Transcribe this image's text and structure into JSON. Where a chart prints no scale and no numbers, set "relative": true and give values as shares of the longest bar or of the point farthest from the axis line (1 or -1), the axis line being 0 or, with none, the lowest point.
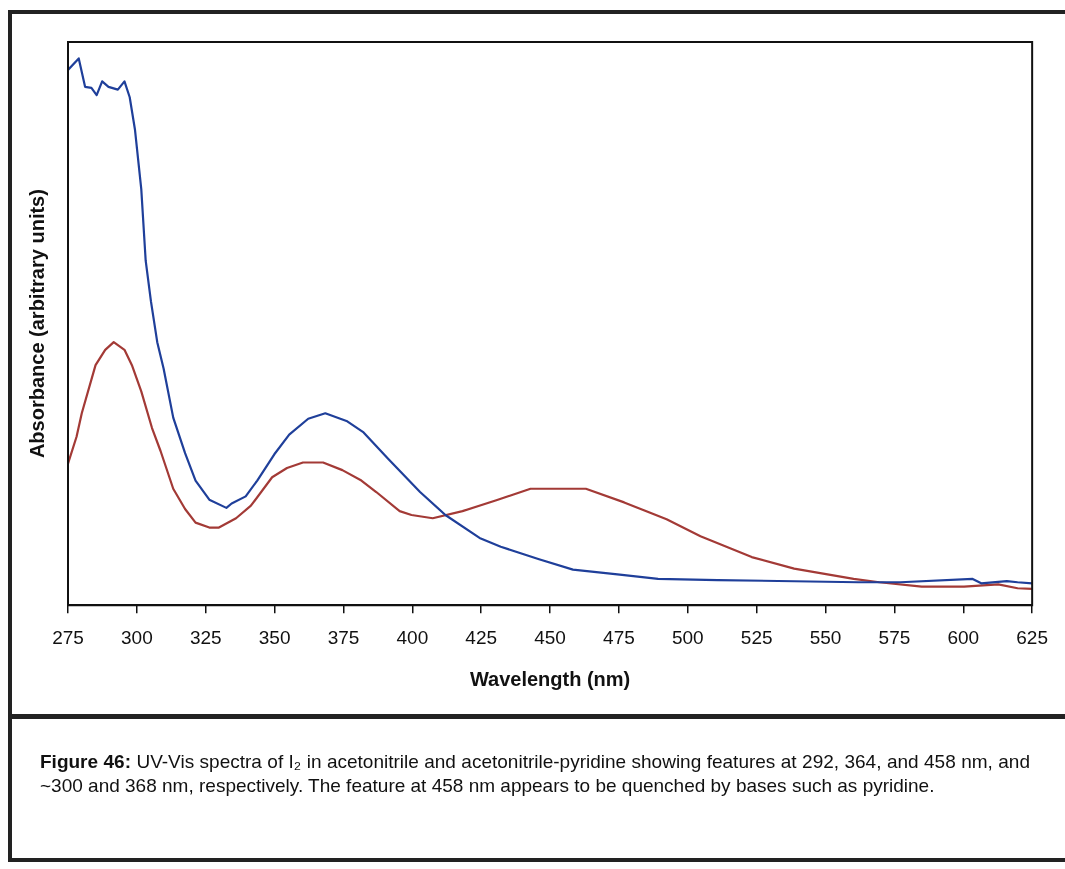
{
  "chart_data": {
    "type": "line",
    "relative": true,
    "xlabel": "Wavelength (nm)",
    "ylabel": "Absorbance (arbitrary units)",
    "xlim": [
      275,
      625
    ],
    "xticks": [
      275,
      300,
      325,
      350,
      375,
      400,
      425,
      450,
      475,
      500,
      525,
      550,
      575,
      600,
      625
    ],
    "tick_labels": "x",
    "grid": false,
    "legend": false,
    "marker": "none",
    "line_style": "solid",
    "annotations": [
      "Figure 46: UV-Vis spectra of I₂ in acetonitrile and acetonitrile-pyridine showing features at 292, 364, and 458 nm, and ~300 and 368 nm, respectively. The feature at 458 nm appears to be quenched by bases such as pyridine."
    ],
    "series": [
      {
        "color": "#1f3f9a",
        "x": [
          275,
          278.9,
          281.2,
          283.5,
          285.4,
          287.4,
          289.7,
          293.1,
          295.5,
          297.4,
          299.3,
          301.6,
          303.2,
          305.1,
          307.4,
          309.7,
          313.2,
          317.5,
          321.3,
          326.3,
          332.5,
          334.4,
          339.5,
          343.7,
          349.9,
          355.3,
          362.2,
          368.4,
          376.1,
          382.3,
          391.2,
          402.8,
          412.0,
          424.4,
          432.1,
          446.0,
          458.3,
          475.3,
          489.2,
          510.8,
          561.8,
          577.2,
          603.4,
          606.5,
          615.8,
          619.7,
          625
        ],
        "values": [
          0.979,
          1.0,
          0.948,
          0.946,
          0.933,
          0.958,
          0.948,
          0.943,
          0.958,
          0.929,
          0.87,
          0.761,
          0.63,
          0.556,
          0.481,
          0.433,
          0.343,
          0.278,
          0.228,
          0.193,
          0.178,
          0.186,
          0.199,
          0.228,
          0.276,
          0.312,
          0.341,
          0.351,
          0.337,
          0.316,
          0.268,
          0.207,
          0.165,
          0.123,
          0.107,
          0.084,
          0.065,
          0.056,
          0.048,
          0.046,
          0.042,
          0.042,
          0.048,
          0.04,
          0.044,
          0.042,
          0.04
        ]
      },
      {
        "color": "#a33a36",
        "x": [
          275,
          278.1,
          280.0,
          285.0,
          288.5,
          291.6,
          295.5,
          298.2,
          301.6,
          305.5,
          308.6,
          313.2,
          317.5,
          321.3,
          326.3,
          329.8,
          336.0,
          341.4,
          349.1,
          354.5,
          360.3,
          367.6,
          374.6,
          381.5,
          386.9,
          395.4,
          399.7,
          407.4,
          418.2,
          430.5,
          442.9,
          463.0,
          476.9,
          492.3,
          504.6,
          523.2,
          538.6,
          560.2,
          569.5,
          584.9,
          600.3,
          612.7,
          619.7,
          625
        ],
        "values": [
          0.259,
          0.308,
          0.351,
          0.439,
          0.467,
          0.481,
          0.467,
          0.439,
          0.391,
          0.324,
          0.282,
          0.213,
          0.176,
          0.151,
          0.142,
          0.142,
          0.159,
          0.182,
          0.234,
          0.251,
          0.261,
          0.261,
          0.247,
          0.228,
          0.207,
          0.172,
          0.165,
          0.159,
          0.172,
          0.192,
          0.213,
          0.213,
          0.188,
          0.157,
          0.126,
          0.088,
          0.067,
          0.048,
          0.042,
          0.034,
          0.034,
          0.038,
          0.031,
          0.03
        ]
      }
    ]
  }
}
